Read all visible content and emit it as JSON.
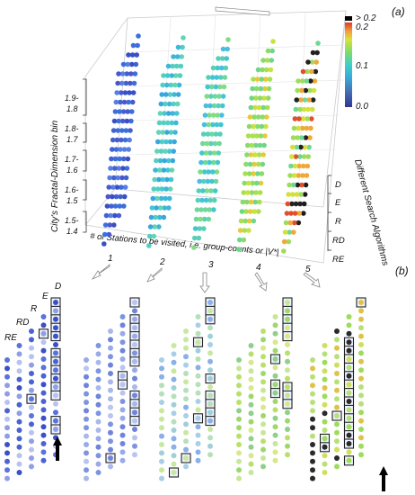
{
  "panel_a_label": "(a)",
  "panel_b_label": "(b)",
  "colorbar": {
    "top_label": "> 0.2",
    "ticks": [
      "0.2",
      "0.1",
      "0.0"
    ],
    "colors": [
      "#313695",
      "#4575b4",
      "#39a9dd",
      "#3fd0c8",
      "#7ddc6a",
      "#d9e33a",
      "#f59a3a",
      "#e0382b"
    ]
  },
  "y_axis_title": "City's Fractal-Dimension bin",
  "y_ticks": [
    {
      "top": "1.9-",
      "bottom": "1.8"
    },
    {
      "top": "1.8-",
      "bottom": "1.7"
    },
    {
      "top": "1.7-",
      "bottom": "1.6"
    },
    {
      "top": "1.6-",
      "bottom": "1.5"
    },
    {
      "top": "1.5-",
      "bottom": "1.4"
    }
  ],
  "x_axis_title": "# of Stations to be visited, i.e. group-counts or |V*|",
  "x_ticks": [
    "1",
    "2",
    "3",
    "4",
    "5"
  ],
  "z_axis_title": "Different Search Algorithms",
  "algorithms": [
    "D",
    "E",
    "R",
    "RD",
    "RE"
  ],
  "panel_b_column_labels": [
    "RE",
    "RD",
    "R",
    "E",
    "D"
  ],
  "highlight_color": "#222222",
  "arrow_color": "#000000"
}
